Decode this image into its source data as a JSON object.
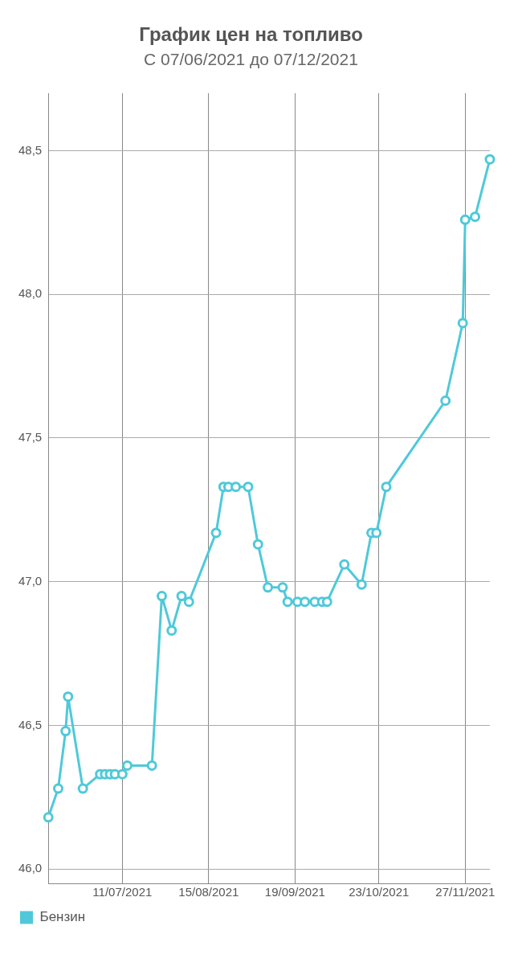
{
  "chart_data": {
    "type": "line",
    "title": "График цен на топливо",
    "subtitle": "С 07/06/2021 до 07/12/2021",
    "x": [
      "2021-06-11",
      "2021-06-15",
      "2021-06-18",
      "2021-06-19",
      "2021-06-25",
      "2021-07-02",
      "2021-07-04",
      "2021-07-06",
      "2021-07-08",
      "2021-07-11",
      "2021-07-13",
      "2021-07-23",
      "2021-07-27",
      "2021-07-31",
      "2021-08-04",
      "2021-08-07",
      "2021-08-18",
      "2021-08-21",
      "2021-08-23",
      "2021-08-26",
      "2021-08-31",
      "2021-09-04",
      "2021-09-08",
      "2021-09-14",
      "2021-09-16",
      "2021-09-20",
      "2021-09-23",
      "2021-09-27",
      "2021-09-30",
      "2021-10-02",
      "2021-10-09",
      "2021-10-16",
      "2021-10-20",
      "2021-10-22",
      "2021-10-26",
      "2021-11-19",
      "2021-11-26",
      "2021-11-27",
      "2021-12-01",
      "2021-12-07"
    ],
    "series": [
      {
        "name": "Бензин",
        "color": "#4fc9d9",
        "values": [
          46.18,
          46.28,
          46.48,
          46.6,
          46.28,
          46.33,
          46.33,
          46.33,
          46.33,
          46.33,
          46.36,
          46.36,
          46.95,
          46.83,
          46.95,
          46.93,
          47.17,
          47.33,
          47.33,
          47.33,
          47.33,
          47.13,
          46.98,
          46.98,
          46.93,
          46.93,
          46.93,
          46.93,
          46.93,
          46.93,
          47.06,
          46.99,
          47.17,
          47.17,
          47.33,
          47.63,
          47.9,
          48.26,
          48.27,
          48.47
        ]
      }
    ],
    "xlim": [
      "2021-06-11",
      "2021-12-07"
    ],
    "xticks": [
      {
        "value": "2021-07-11",
        "label": "11/07/2021"
      },
      {
        "value": "2021-08-15",
        "label": "15/08/2021"
      },
      {
        "value": "2021-09-19",
        "label": "19/09/2021"
      },
      {
        "value": "2021-10-23",
        "label": "23/10/2021"
      },
      {
        "value": "2021-11-27",
        "label": "27/11/2021"
      }
    ],
    "ylim": [
      45.95,
      48.7
    ],
    "yticks": [
      {
        "value": 46,
        "label": "46,0"
      },
      {
        "value": 46.5,
        "label": "46,5"
      },
      {
        "value": 47,
        "label": "47,0"
      },
      {
        "value": 47.5,
        "label": "47,5"
      },
      {
        "value": 48,
        "label": "48,0"
      },
      {
        "value": 48.5,
        "label": "48,5"
      }
    ],
    "grid": true,
    "legend": "bottom left",
    "marker": "circle",
    "line_style": "solid"
  }
}
